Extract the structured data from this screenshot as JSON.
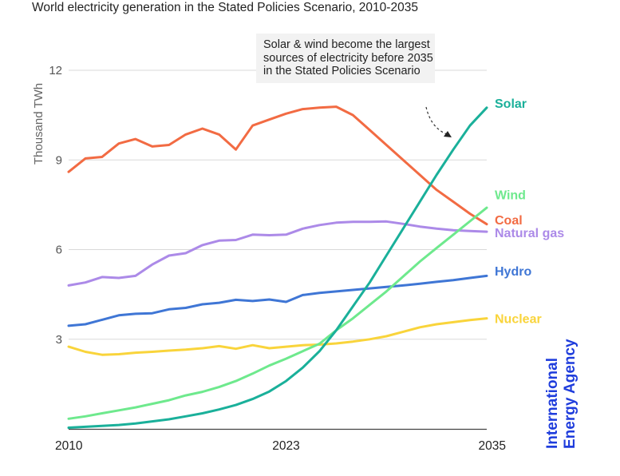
{
  "chart_data": {
    "type": "line",
    "title": "World electricity generation in the Stated Policies Scenario, 2010-2035",
    "ylabel": "Thousand TWh",
    "xlabel": "",
    "xlim": [
      2010,
      2035
    ],
    "ylim": [
      0,
      12
    ],
    "yticks": [
      3,
      6,
      9,
      12
    ],
    "xticks": [
      2010,
      2023,
      2035
    ],
    "x": [
      2010,
      2011,
      2012,
      2013,
      2014,
      2015,
      2016,
      2017,
      2018,
      2019,
      2020,
      2021,
      2022,
      2023,
      2024,
      2025,
      2026,
      2027,
      2028,
      2029,
      2030,
      2031,
      2032,
      2033,
      2034,
      2035
    ],
    "series": [
      {
        "name": "Coal",
        "color": "#f26b43",
        "values": [
          8.6,
          9.05,
          9.1,
          9.55,
          9.7,
          9.45,
          9.5,
          9.85,
          10.05,
          9.85,
          9.35,
          10.15,
          10.35,
          10.55,
          10.7,
          10.75,
          10.78,
          10.5,
          10.0,
          9.5,
          9.0,
          8.5,
          8.0,
          7.6,
          7.2,
          6.85
        ]
      },
      {
        "name": "Natural gas",
        "color": "#ac8ae8",
        "values": [
          4.8,
          4.9,
          5.08,
          5.05,
          5.12,
          5.5,
          5.8,
          5.88,
          6.15,
          6.3,
          6.32,
          6.5,
          6.48,
          6.5,
          6.7,
          6.82,
          6.9,
          6.93,
          6.93,
          6.94,
          6.86,
          6.77,
          6.7,
          6.65,
          6.62,
          6.6
        ]
      },
      {
        "name": "Hydro",
        "color": "#3f76d5",
        "values": [
          3.45,
          3.5,
          3.65,
          3.8,
          3.85,
          3.87,
          4.0,
          4.05,
          4.17,
          4.22,
          4.32,
          4.28,
          4.33,
          4.25,
          4.48,
          4.55,
          4.6,
          4.65,
          4.7,
          4.75,
          4.8,
          4.86,
          4.92,
          4.98,
          5.05,
          5.12
        ]
      },
      {
        "name": "Nuclear",
        "color": "#f9d43b",
        "values": [
          2.75,
          2.58,
          2.48,
          2.5,
          2.55,
          2.58,
          2.62,
          2.65,
          2.7,
          2.77,
          2.68,
          2.8,
          2.7,
          2.75,
          2.8,
          2.82,
          2.86,
          2.92,
          3.0,
          3.1,
          3.25,
          3.4,
          3.5,
          3.57,
          3.64,
          3.7
        ]
      },
      {
        "name": "Wind",
        "color": "#6ee98d",
        "values": [
          0.34,
          0.42,
          0.52,
          0.62,
          0.72,
          0.84,
          0.96,
          1.12,
          1.24,
          1.4,
          1.6,
          1.85,
          2.12,
          2.35,
          2.6,
          2.85,
          3.3,
          3.7,
          4.15,
          4.6,
          5.1,
          5.6,
          6.05,
          6.5,
          6.95,
          7.4
        ]
      },
      {
        "name": "Solar",
        "color": "#1ab09a",
        "values": [
          0.04,
          0.07,
          0.1,
          0.13,
          0.18,
          0.25,
          0.32,
          0.42,
          0.52,
          0.65,
          0.8,
          1.0,
          1.25,
          1.6,
          2.05,
          2.6,
          3.3,
          4.1,
          4.9,
          5.8,
          6.7,
          7.6,
          8.5,
          9.35,
          10.15,
          10.75
        ]
      }
    ],
    "annotation": "Solar & wind become the largest sources of electricity before 2035 in the Stated Policies Scenario"
  },
  "brand": {
    "line1": "International",
    "line2": "Energy Agency",
    "color": "#1f3ddc"
  }
}
